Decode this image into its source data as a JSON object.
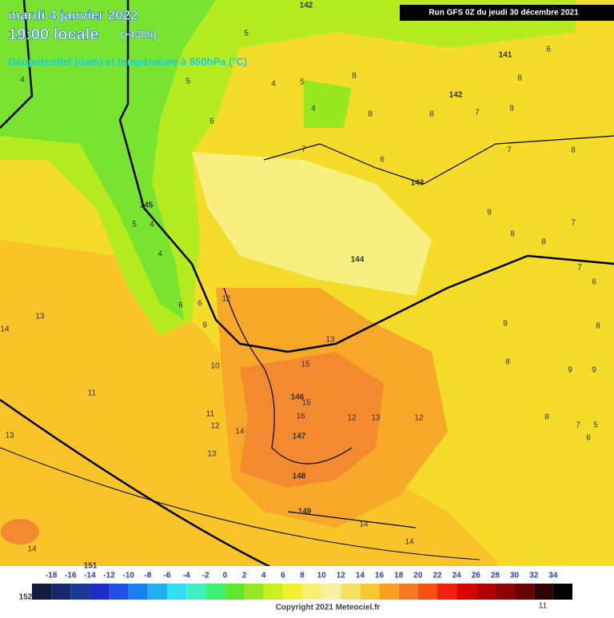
{
  "header": {
    "date": "mardi 4 janvier 2022",
    "time": "19:00 locale",
    "lead": "(+138h)",
    "field": "Géopotentiel (dam) et température à 850hPa (°C)",
    "run": "Run GFS 0Z du jeudi 30 décembre 2021"
  },
  "map_labels": {
    "temperature": [
      4,
      5,
      5,
      4,
      5,
      4,
      6,
      7,
      8,
      8,
      8,
      7,
      9,
      8,
      6,
      7,
      8,
      6,
      9,
      8,
      7,
      8,
      7,
      6,
      9,
      8,
      8,
      9,
      9,
      7,
      5,
      6,
      8,
      5,
      4,
      4,
      6,
      6,
      9,
      12,
      10,
      11,
      12,
      13,
      13,
      14,
      11,
      13,
      14,
      13,
      15,
      15,
      16,
      12,
      13,
      12,
      14,
      14,
      14,
      11
    ],
    "geopotential": [
      142,
      141,
      142,
      143,
      144,
      145,
      146,
      147,
      148,
      149,
      151,
      152
    ]
  },
  "colorbar": {
    "labels": [
      -18,
      -16,
      -14,
      -12,
      -10,
      -8,
      -6,
      -4,
      -2,
      0,
      2,
      4,
      6,
      8,
      10,
      12,
      14,
      16,
      18,
      20,
      22,
      24,
      26,
      28,
      30,
      32,
      34
    ],
    "colors": [
      "#141a40",
      "#16286a",
      "#1a3a96",
      "#1e2cc8",
      "#2050e8",
      "#1880f0",
      "#20b0f0",
      "#30e0f0",
      "#40f0c0",
      "#40f070",
      "#60e830",
      "#98e820",
      "#c8f020",
      "#f0f030",
      "#f8f070",
      "#f8f0a0",
      "#f8e060",
      "#f8c830",
      "#f8a020",
      "#f87820",
      "#f85010",
      "#f02010",
      "#d80000",
      "#b00000",
      "#900000",
      "#680000",
      "#300000",
      "#000000"
    ]
  },
  "copyright": "Copyright 2021 Meteociel.fr"
}
